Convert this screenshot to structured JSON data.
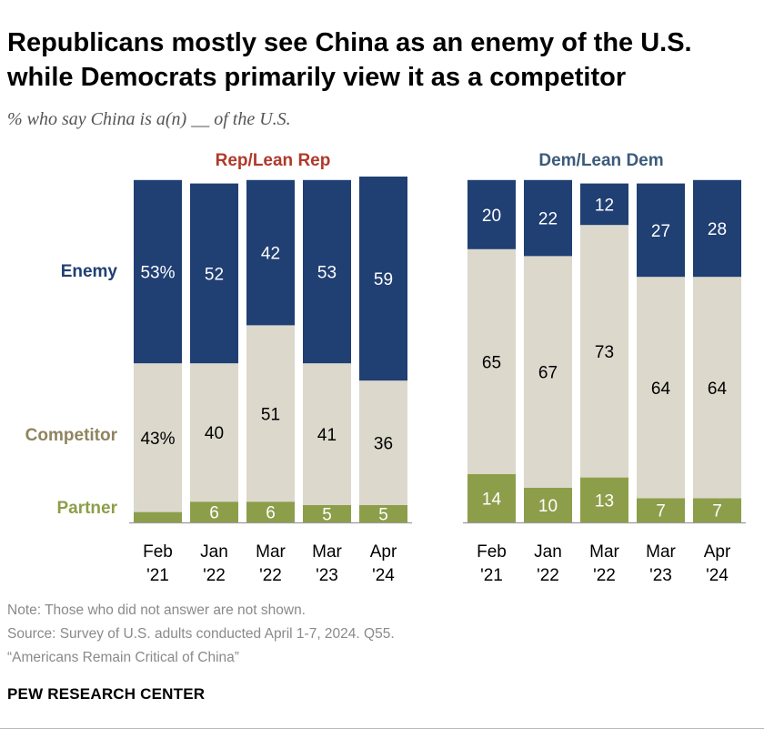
{
  "chart_data": {
    "type": "bar",
    "stacked": true,
    "title": "Republicans mostly see China as an enemy of the U.S. while Democrats primarily view it as a competitor",
    "subtitle": "% who say China is a(n) __ of the U.S.",
    "series_names": [
      "Partner",
      "Competitor",
      "Enemy"
    ],
    "colors": {
      "Enemy": "#203f73",
      "Competitor": "#dcd8cc",
      "Partner": "#8d9e4a",
      "rep_title": "#b0392a",
      "dem_title": "#3b5b7a"
    },
    "groups": [
      {
        "title": "Rep/Lean Rep",
        "categories": [
          [
            "Feb",
            "'21"
          ],
          [
            "Jan",
            "'22"
          ],
          [
            "Mar",
            "'22"
          ],
          [
            "Mar",
            "'23"
          ],
          [
            "Apr",
            "'24"
          ]
        ],
        "series": [
          {
            "name": "Partner",
            "values": [
              3,
              6,
              6,
              5,
              5
            ],
            "labels": [
              "",
              "6",
              "6",
              "5",
              "5"
            ]
          },
          {
            "name": "Competitor",
            "values": [
              43,
              40,
              51,
              41,
              36
            ],
            "labels": [
              "43%",
              "40",
              "51",
              "41",
              "36"
            ]
          },
          {
            "name": "Enemy",
            "values": [
              53,
              52,
              42,
              53,
              59
            ],
            "labels": [
              "53%",
              "52",
              "42",
              "53",
              "59"
            ]
          }
        ]
      },
      {
        "title": "Dem/Lean Dem",
        "categories": [
          [
            "Feb",
            "'21"
          ],
          [
            "Jan",
            "'22"
          ],
          [
            "Mar",
            "'22"
          ],
          [
            "Mar",
            "'23"
          ],
          [
            "Apr",
            "'24"
          ]
        ],
        "series": [
          {
            "name": "Partner",
            "values": [
              14,
              10,
              13,
              7,
              7
            ],
            "labels": [
              "14",
              "10",
              "13",
              "7",
              "7"
            ]
          },
          {
            "name": "Competitor",
            "values": [
              65,
              67,
              73,
              64,
              64
            ],
            "labels": [
              "65",
              "67",
              "73",
              "64",
              "64"
            ]
          },
          {
            "name": "Enemy",
            "values": [
              20,
              22,
              12,
              27,
              28
            ],
            "labels": [
              "20",
              "22",
              "12",
              "27",
              "28"
            ]
          }
        ]
      }
    ],
    "ylim": [
      0,
      100
    ]
  },
  "notes": {
    "note": "Note: Those who did not answer are not shown.",
    "source": "Source: Survey of U.S. adults conducted April 1-7, 2024. Q55.",
    "report": "“Americans Remain Critical of China”"
  },
  "brand": "PEW RESEARCH CENTER"
}
